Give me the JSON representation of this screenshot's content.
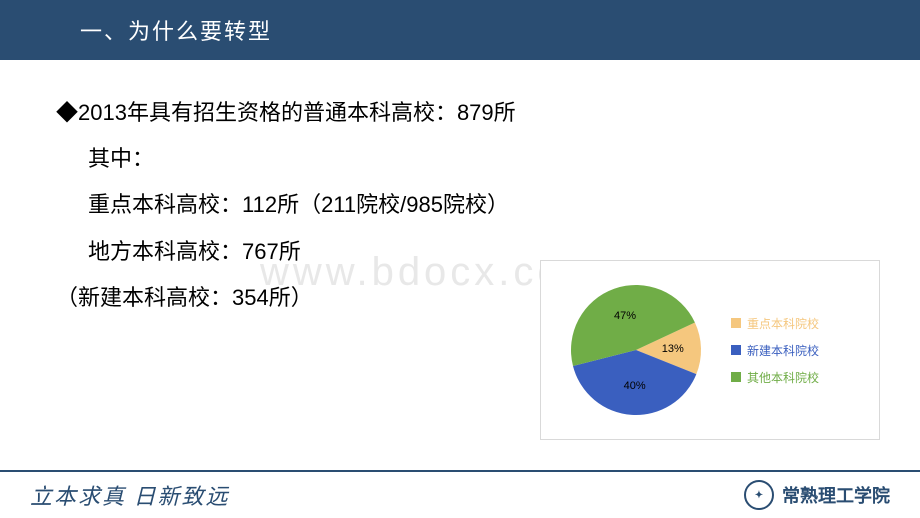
{
  "header": {
    "title": "一、为什么要转型"
  },
  "lines": {
    "l1": "◆2013年具有招生资格的普通本科高校：879所",
    "l2": "其中：",
    "l3": "重点本科高校：112所（211院校/985院校）",
    "l4": "地方本科高校：767所",
    "l5": "（新建本科高校：354所）"
  },
  "watermark": "www.bdocx.com",
  "chart": {
    "type": "pie",
    "slices": [
      {
        "label": "重点本科院校",
        "pct": 13,
        "pct_label": "13%",
        "color": "#f5c77e"
      },
      {
        "label": "新建本科院校",
        "pct": 40,
        "pct_label": "40%",
        "color": "#3a5fbf"
      },
      {
        "label": "其他本科院校",
        "pct": 47,
        "pct_label": "47%",
        "color": "#70ad47"
      }
    ],
    "radius": 65,
    "rotation_deg": -25,
    "border_color": "#d9d9d9",
    "background_color": "#ffffff",
    "legend_fontsize": 12,
    "label_fontsize": 11
  },
  "footer": {
    "left": "立本求真  日新致远",
    "right": "常熟理工学院"
  }
}
